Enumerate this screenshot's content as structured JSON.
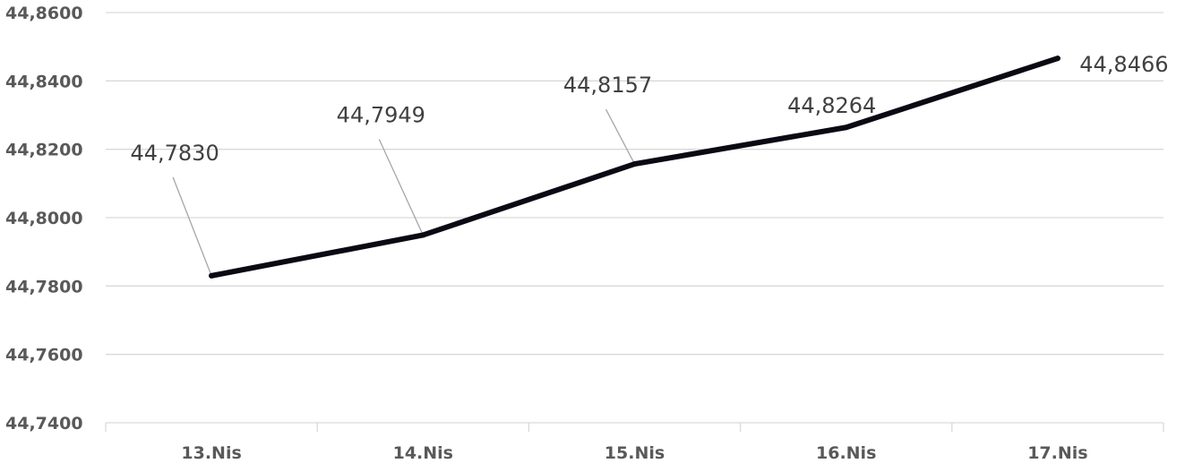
{
  "chart_data": {
    "type": "line",
    "categories": [
      "13.Nis",
      "14.Nis",
      "15.Nis",
      "16.Nis",
      "17.Nis"
    ],
    "series": [
      {
        "values": [
          44.783,
          44.7949,
          44.8157,
          44.8264,
          44.8466
        ],
        "data_labels": [
          "44,7830",
          "44,7949",
          "44,8157",
          "44,8264",
          "44,8466"
        ],
        "color": "#0a0a14"
      }
    ],
    "yticks": [
      44.74,
      44.76,
      44.78,
      44.8,
      44.82,
      44.84,
      44.86
    ],
    "ytick_labels": [
      "44,7400",
      "44,7600",
      "44,7800",
      "44,8000",
      "44,8200",
      "44,8400",
      "44,8600"
    ],
    "ylim": [
      44.74,
      44.86
    ],
    "grid": true,
    "legend": "none"
  }
}
